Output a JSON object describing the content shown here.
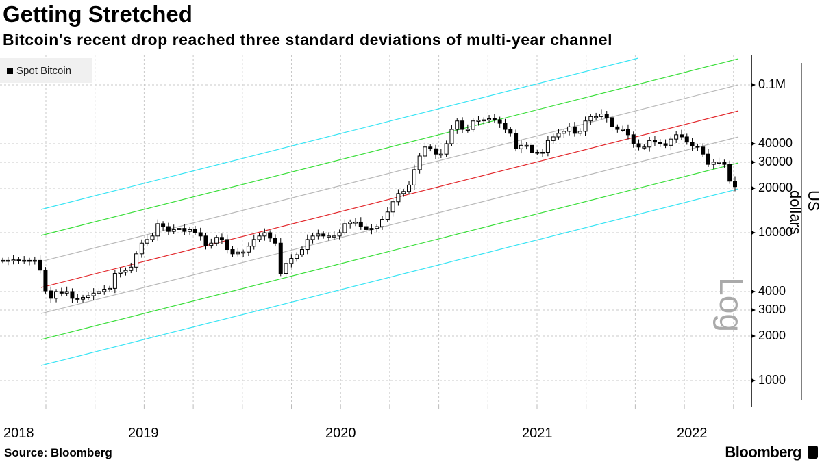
{
  "header": {
    "title": "Getting Stretched",
    "subtitle": "Bitcoin's recent drop reached three standard deviations of multi-year channel"
  },
  "footer": {
    "source": "Source: Bloomberg",
    "brand": "Bloomberg"
  },
  "chart_data": {
    "type": "candlestick",
    "title": "Getting Stretched",
    "legend": {
      "label": "Spot Bitcoin",
      "placement": "top-left"
    },
    "ylabel": "US dollars",
    "yscale_label": "Log",
    "yscale": "log",
    "ylim": [
      600,
      150000
    ],
    "yticks": [
      {
        "value": 100000,
        "label": "0.1M"
      },
      {
        "value": 40000,
        "label": "40000"
      },
      {
        "value": 30000,
        "label": "30000"
      },
      {
        "value": 20000,
        "label": "20000"
      },
      {
        "value": 10000,
        "label": "10000"
      },
      {
        "value": 4000,
        "label": "4000"
      },
      {
        "value": 3000,
        "label": "3000"
      },
      {
        "value": 2000,
        "label": "2000"
      },
      {
        "value": 1000,
        "label": "1000"
      }
    ],
    "xticks": [
      "2018",
      "2019",
      "2020",
      "2021",
      "2022"
    ],
    "grid": true,
    "closes": [
      6500,
      6500,
      6550,
      6450,
      6500,
      6480,
      6500,
      5580,
      4040,
      3600,
      4000,
      3900,
      4000,
      3600,
      3550,
      3650,
      3750,
      3900,
      4000,
      4150,
      4200,
      5300,
      5400,
      5550,
      5850,
      7200,
      8500,
      9000,
      9500,
      11500,
      11000,
      10200,
      10500,
      10700,
      10200,
      10500,
      10000,
      9500,
      8200,
      8500,
      9300,
      9000,
      7700,
      7200,
      7400,
      7400,
      8100,
      9000,
      9500,
      10000,
      9200,
      8500,
      5300,
      6200,
      6700,
      7100,
      7700,
      9000,
      9500,
      9800,
      9500,
      9500,
      9500,
      10000,
      11500,
      11800,
      11800,
      11000,
      10500,
      10700,
      11000,
      12300,
      13800,
      16200,
      18400,
      19000,
      21000,
      26700,
      33000,
      38000,
      37000,
      34000,
      34000,
      40000,
      50000,
      57000,
      50000,
      50000,
      57000,
      57500,
      58000,
      59000,
      58000,
      55000,
      50000,
      47000,
      37000,
      39000,
      39000,
      35000,
      35000,
      35000,
      42000,
      44500,
      47000,
      48500,
      52000,
      47000,
      48500,
      57000,
      61000,
      61000,
      63500,
      60000,
      52000,
      50000,
      50000,
      46000,
      40000,
      38000,
      38000,
      42000,
      41000,
      40000,
      39000,
      43000,
      46000,
      44500,
      41000,
      38500,
      38000,
      34000,
      29000,
      30000,
      30000,
      29000,
      22300,
      20500
    ],
    "channel": {
      "mean_start": 4260,
      "mean_end": 66700,
      "sigma_log10": 0.176,
      "bands": [
        {
          "sigma": 3,
          "color": "#38e4f4"
        },
        {
          "sigma": 2,
          "color": "#3ade3a"
        },
        {
          "sigma": 1,
          "color": "#b8b8b8"
        },
        {
          "sigma": 0,
          "color": "#e2282c"
        },
        {
          "sigma": -1,
          "color": "#b8b8b8"
        },
        {
          "sigma": -2,
          "color": "#3ade3a"
        },
        {
          "sigma": -3,
          "color": "#38e4f4"
        }
      ]
    }
  }
}
